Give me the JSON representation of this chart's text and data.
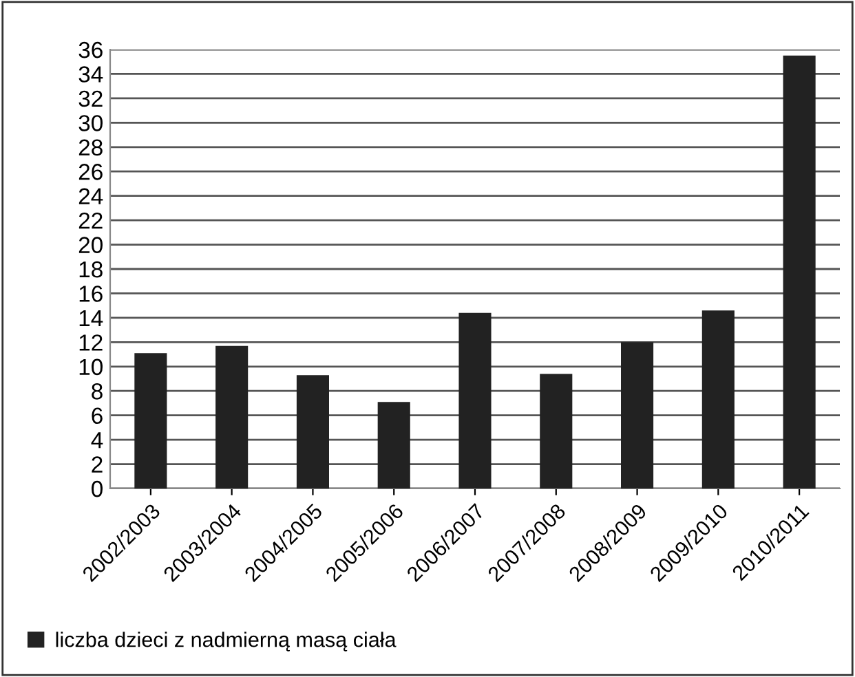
{
  "chart_data": {
    "type": "bar",
    "categories": [
      "2002/2003",
      "2003/2004",
      "2004/2005",
      "2005/2006",
      "2006/2007",
      "2007/2008",
      "2008/2009",
      "2009/2010",
      "2010/2011"
    ],
    "series": [
      {
        "name": "liczba dzieci z nadmierną masą ciała",
        "color": "#222222",
        "values": [
          11.1,
          11.7,
          9.3,
          7.1,
          14.4,
          9.4,
          12.0,
          14.6,
          35.5
        ]
      }
    ],
    "ylim": [
      0,
      36
    ],
    "yticks": [
      0,
      2,
      4,
      6,
      8,
      10,
      12,
      14,
      16,
      18,
      20,
      22,
      24,
      26,
      28,
      30,
      32,
      34,
      36
    ],
    "grid": "y",
    "legend": "bottom left"
  }
}
